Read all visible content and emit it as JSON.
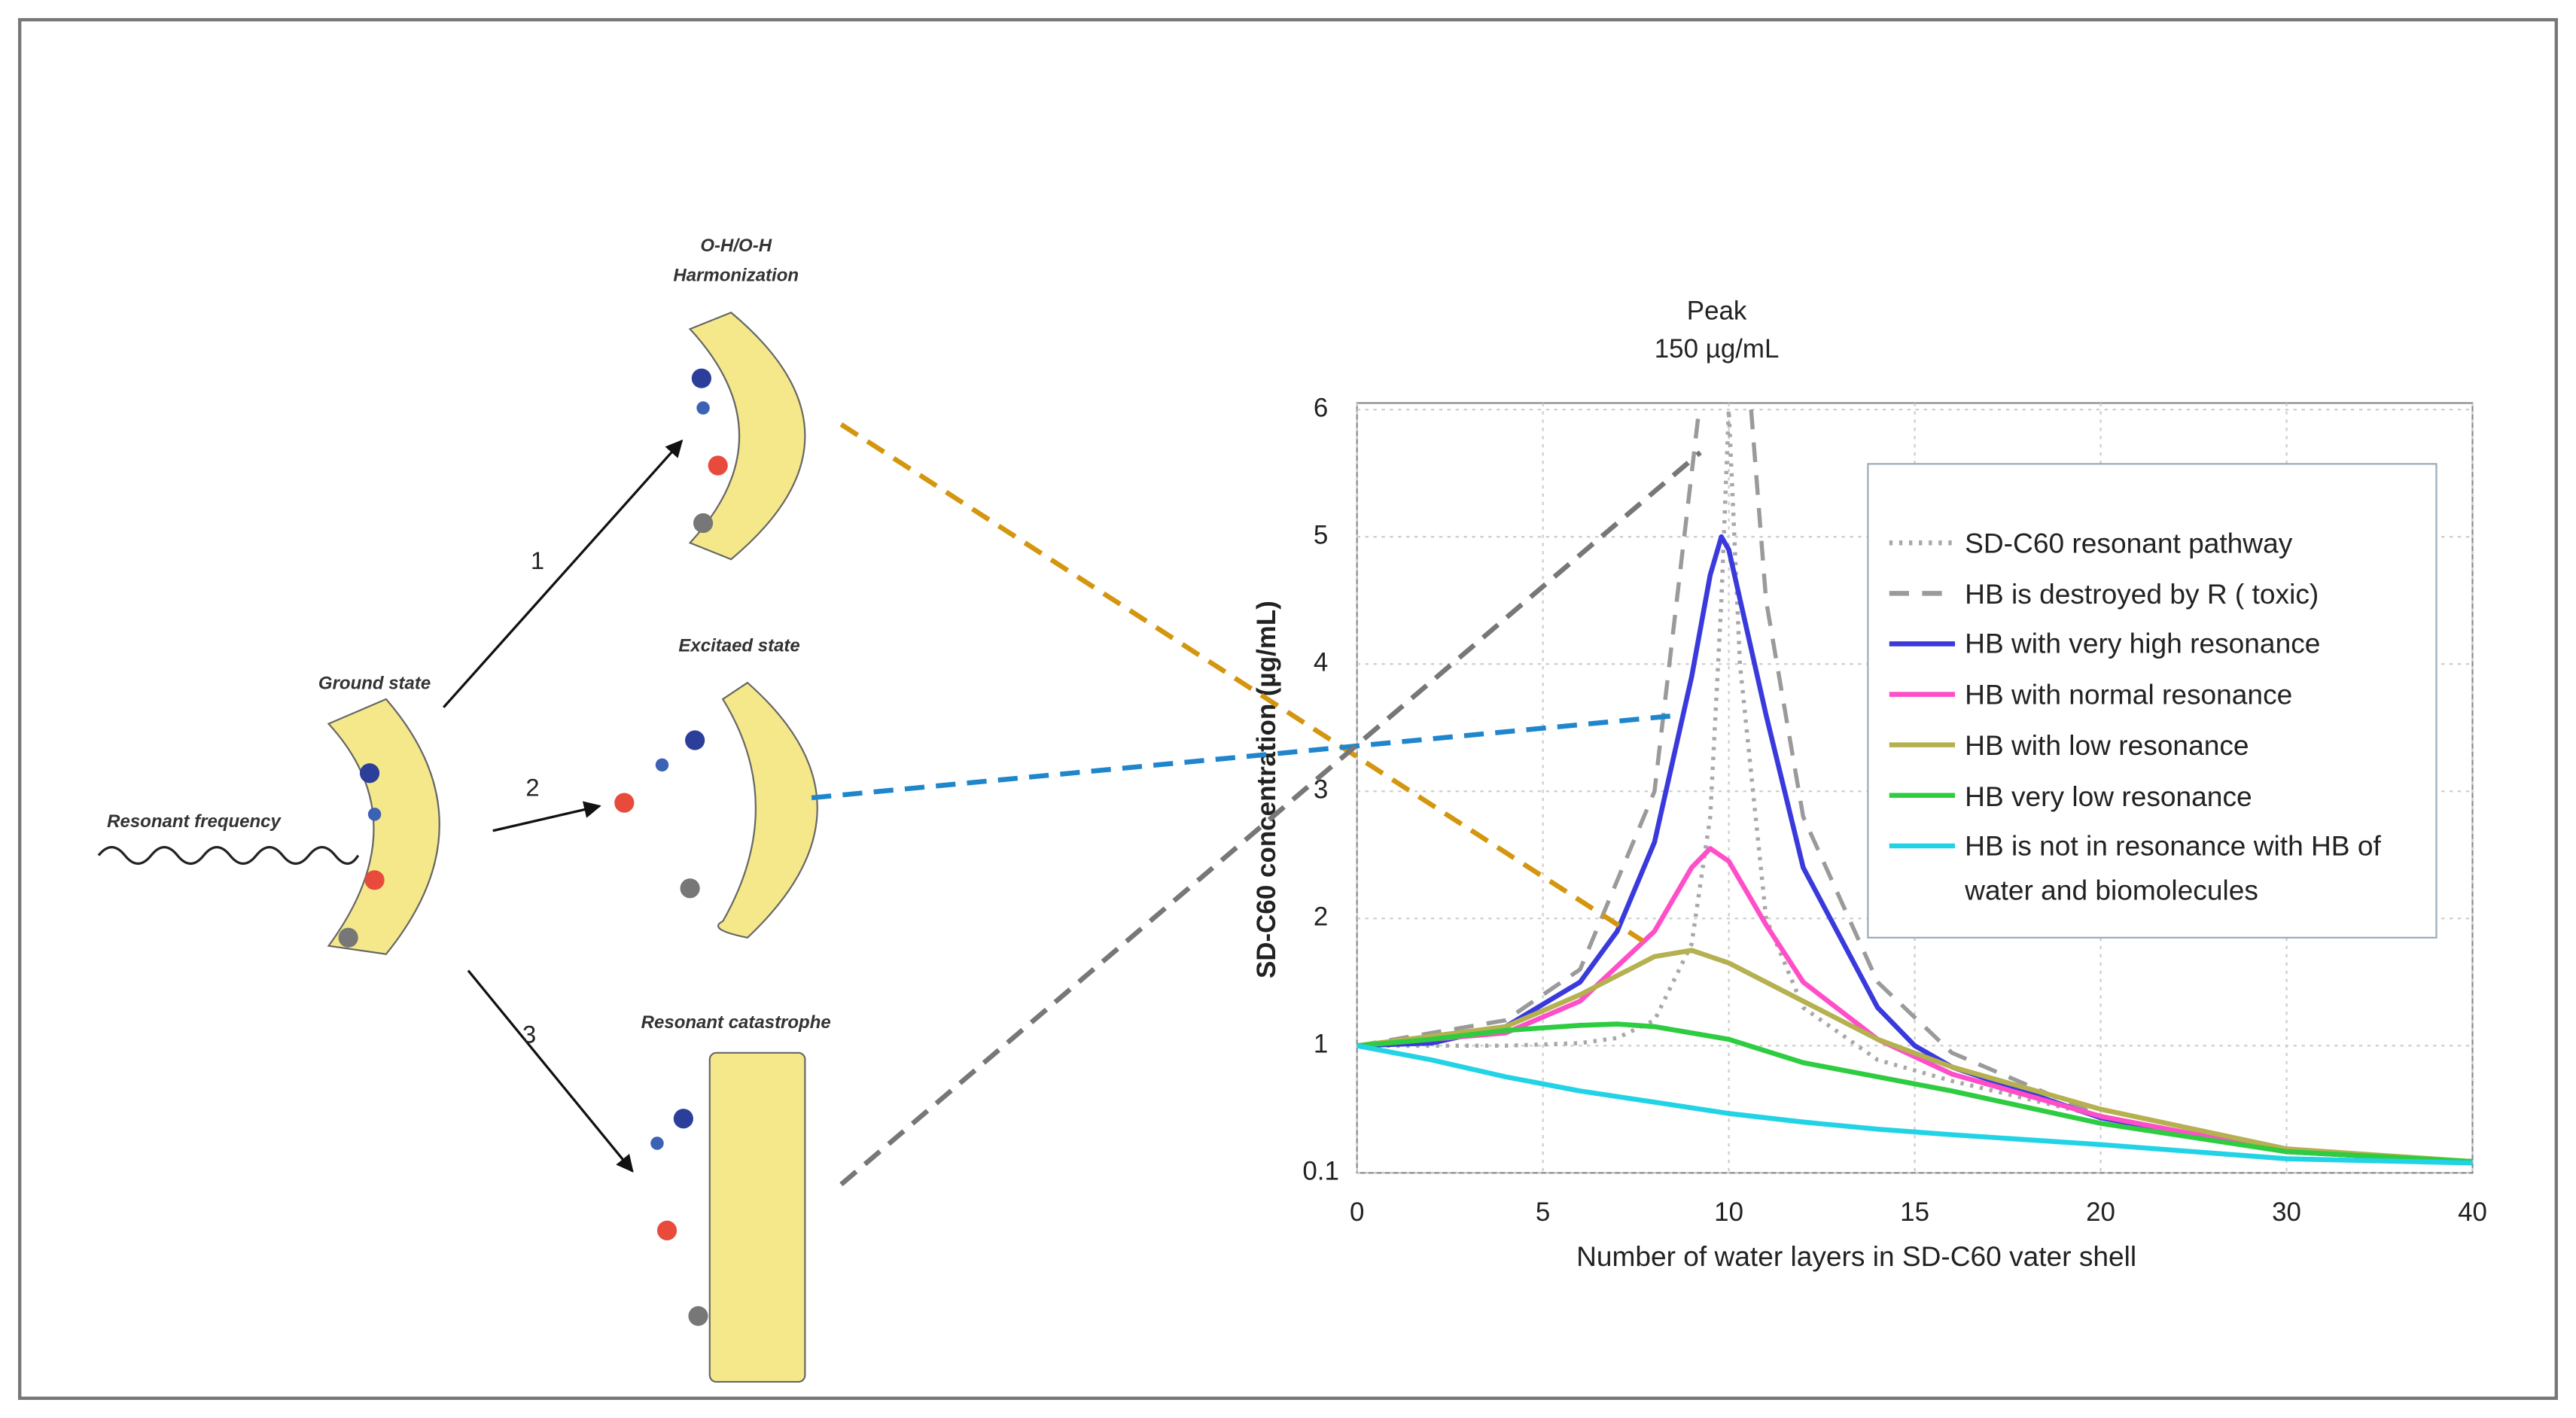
{
  "diagram": {
    "ground": "Ground state",
    "frequency": "Resonant frequency",
    "harmonization": [
      "O-H/O-H",
      "Harmonization"
    ],
    "excited": "Excitaed state",
    "catastrophe": "Resonant catastrophe",
    "paths": [
      "1",
      "2",
      "3"
    ]
  },
  "chart_data": {
    "type": "line",
    "title": "Peak",
    "subtitle": "150 µg/mL",
    "xlabel": "Number of water layers in SD-C60 vater shell",
    "ylabel": "SD-C60 concentration (µg/mL)",
    "xlim": [
      0,
      40
    ],
    "ylim": [
      0.1,
      6
    ],
    "xticks": [
      0,
      5,
      10,
      15,
      20,
      30,
      40
    ],
    "yticks": [
      0.1,
      1,
      2,
      3,
      4,
      5,
      6
    ],
    "grid": true,
    "legend": "upper right",
    "series": [
      {
        "name": "SD-C60 resonant pathway",
        "color": "#a8a8a8",
        "style": "dotted",
        "x": [
          0,
          4,
          6,
          7,
          8,
          9,
          9.5,
          9.8,
          10,
          10.3,
          11,
          12,
          14,
          16,
          20,
          30,
          40
        ],
        "values": [
          1,
          1,
          1.02,
          1.06,
          1.2,
          1.8,
          2.8,
          4.5,
          6,
          4,
          2,
          1.3,
          0.9,
          0.75,
          0.5,
          0.25,
          0.18
        ]
      },
      {
        "name": "HB is destroyed by R ( toxic)",
        "color": "#9a9a9a",
        "style": "dashed",
        "x": [
          0,
          4,
          6,
          8,
          9,
          9.2,
          10,
          10.6,
          11,
          12,
          14,
          16,
          20,
          30,
          40
        ],
        "values": [
          1,
          1.2,
          1.6,
          3,
          5.5,
          6,
          null,
          6,
          4.5,
          2.8,
          1.5,
          0.95,
          0.5,
          0.25,
          0.18
        ]
      },
      {
        "name": "HB with very high resonance",
        "color": "#3a3adc",
        "style": "solid",
        "x": [
          0,
          2,
          4,
          6,
          7,
          8,
          9,
          9.5,
          9.8,
          10,
          11,
          12,
          14,
          15,
          16,
          20,
          30,
          40
        ],
        "values": [
          1,
          1.02,
          1.15,
          1.5,
          1.9,
          2.6,
          3.9,
          4.7,
          5,
          4.9,
          3.6,
          2.4,
          1.3,
          1,
          0.85,
          0.49,
          0.25,
          0.18
        ]
      },
      {
        "name": "HB  with normal resonance",
        "color": "#ff4fc8",
        "style": "solid",
        "x": [
          0,
          4,
          6,
          8,
          9,
          9.5,
          10,
          11,
          12,
          14,
          16,
          20,
          30,
          40
        ],
        "values": [
          1,
          1.1,
          1.35,
          1.9,
          2.4,
          2.55,
          2.45,
          1.95,
          1.5,
          1.05,
          0.8,
          0.5,
          0.25,
          0.18
        ]
      },
      {
        "name": "HB  with low resonance",
        "color": "#b5b050",
        "style": "solid",
        "x": [
          0,
          4,
          6,
          8,
          9,
          10,
          12,
          14,
          16,
          20,
          30,
          40
        ],
        "values": [
          1,
          1.15,
          1.4,
          1.7,
          1.75,
          1.65,
          1.35,
          1.05,
          0.85,
          0.55,
          0.27,
          0.18
        ]
      },
      {
        "name": "HB  very low resonance",
        "color": "#2ecc40",
        "style": "solid",
        "x": [
          0,
          2,
          4,
          6,
          7,
          8,
          10,
          12,
          14,
          16,
          20,
          30,
          40
        ],
        "values": [
          1,
          1.05,
          1.12,
          1.16,
          1.17,
          1.15,
          1.05,
          0.88,
          0.78,
          0.68,
          0.45,
          0.25,
          0.18
        ]
      },
      {
        "name": "HB is not in resonance with HB of water and biomolecules",
        "color": "#22d3e6",
        "style": "solid",
        "x": [
          0,
          2,
          4,
          6,
          8,
          10,
          12,
          14,
          16,
          20,
          30,
          40
        ],
        "values": [
          1,
          0.9,
          0.78,
          0.68,
          0.6,
          0.52,
          0.46,
          0.41,
          0.37,
          0.3,
          0.2,
          0.17
        ]
      }
    ]
  }
}
